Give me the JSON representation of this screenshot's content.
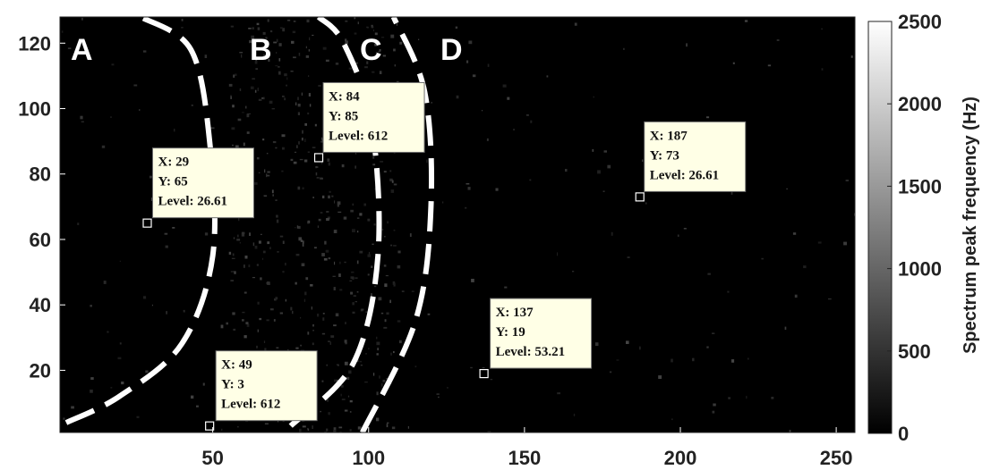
{
  "chart_data": {
    "type": "heatmap",
    "xlabel": "",
    "ylabel": "",
    "xlim": [
      1,
      256
    ],
    "ylim": [
      1,
      128
    ],
    "x_ticks": [
      50,
      100,
      150,
      200,
      250
    ],
    "y_ticks": [
      20,
      40,
      60,
      80,
      100,
      120
    ],
    "grid": false,
    "colorbar": {
      "label": "Spectrum peak frequency (Hz)",
      "range": [
        0,
        2500
      ],
      "ticks": [
        0,
        500,
        1000,
        1500,
        2000,
        2500
      ],
      "colormap": "gray"
    },
    "regions": [
      "A",
      "B",
      "C",
      "D"
    ],
    "boundaries": [
      {
        "points": [
          [
            3,
            4
          ],
          [
            20,
            12
          ],
          [
            40,
            28
          ],
          [
            50,
            55
          ],
          [
            49,
            90
          ],
          [
            43,
            118
          ],
          [
            27,
            128
          ]
        ]
      },
      {
        "points": [
          [
            75,
            3
          ],
          [
            95,
            22
          ],
          [
            103,
            55
          ],
          [
            101,
            95
          ],
          [
            92,
            120
          ],
          [
            84,
            128
          ]
        ]
      },
      {
        "points": [
          [
            98,
            1
          ],
          [
            115,
            35
          ],
          [
            120,
            70
          ],
          [
            118,
            105
          ],
          [
            108,
            128
          ]
        ]
      }
    ],
    "datatips": [
      {
        "marker": [
          29,
          65
        ],
        "lines": [
          "X: 29",
          "Y: 65",
          "Level: 26.61"
        ]
      },
      {
        "marker": [
          84,
          85
        ],
        "lines": [
          "X: 84",
          "Y: 85",
          "Level: 612"
        ]
      },
      {
        "marker": [
          187,
          73
        ],
        "lines": [
          "X: 187",
          "Y: 73",
          "Level: 26.61"
        ]
      },
      {
        "marker": [
          137,
          19
        ],
        "lines": [
          "X: 137",
          "Y: 19",
          "Level: 53.21"
        ]
      },
      {
        "marker": [
          49,
          3
        ],
        "lines": [
          "X: 49",
          "Y: 3",
          "Level: 612"
        ]
      }
    ],
    "colors": {
      "background": "#000000",
      "speckle": "#3a3a3a",
      "boundary": "#ffffff",
      "tip_fill": "#ffffe6",
      "tip_border": "#6e6e6e"
    }
  }
}
